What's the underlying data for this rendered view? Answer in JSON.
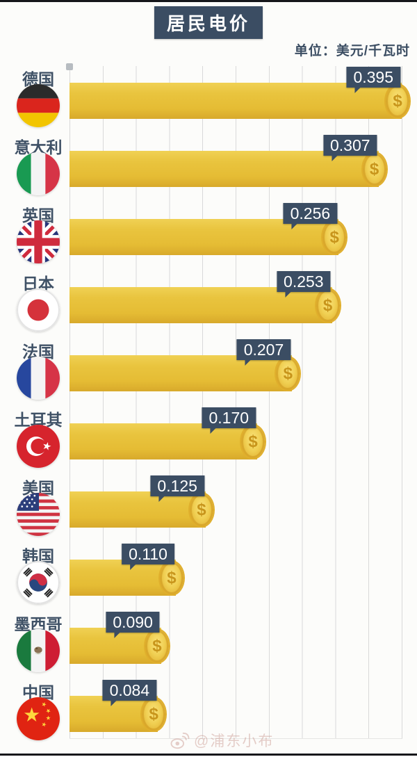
{
  "page": {
    "title": "居民电价",
    "unit": "单位：美元/千瓦时",
    "watermark": "@浦东小布"
  },
  "colors": {
    "accent_slate": "#3b4d63",
    "bar_gold": "#e8c23c",
    "grid_line": "#d9d9d9",
    "coin_gold": "#eec94a",
    "text_dark": "#3f5166"
  },
  "chart_data": {
    "type": "bar",
    "orientation": "horizontal",
    "title": "居民电价",
    "unit": "美元/千瓦时",
    "grid": true,
    "xlim": [
      0,
      0.4
    ],
    "coin_symbol": "$",
    "categories": [
      "德国",
      "意大利",
      "英国",
      "日本",
      "法国",
      "土耳其",
      "美国",
      "韩国",
      "墨西哥",
      "中国"
    ],
    "values": [
      0.395,
      0.307,
      0.256,
      0.253,
      0.207,
      0.17,
      0.125,
      0.11,
      0.09,
      0.084
    ],
    "rows": [
      {
        "label": "德国",
        "flag": "de",
        "value": 0.395,
        "value_label": "0.395",
        "bar_pct": 100
      },
      {
        "label": "意大利",
        "flag": "it",
        "value": 0.307,
        "value_label": "0.307",
        "bar_pct": 93
      },
      {
        "label": "英国",
        "flag": "gb",
        "value": 0.256,
        "value_label": "0.256",
        "bar_pct": 81
      },
      {
        "label": "日本",
        "flag": "jp",
        "value": 0.253,
        "value_label": "0.253",
        "bar_pct": 79
      },
      {
        "label": "法国",
        "flag": "fr",
        "value": 0.207,
        "value_label": "0.207",
        "bar_pct": 67
      },
      {
        "label": "土耳其",
        "flag": "tr",
        "value": 0.17,
        "value_label": "0.170",
        "bar_pct": 56.5
      },
      {
        "label": "美国",
        "flag": "us",
        "value": 0.125,
        "value_label": "0.125",
        "bar_pct": 41
      },
      {
        "label": "韩国",
        "flag": "kr",
        "value": 0.11,
        "value_label": "0.110",
        "bar_pct": 32
      },
      {
        "label": "墨西哥",
        "flag": "mx",
        "value": 0.09,
        "value_label": "0.090",
        "bar_pct": 27.6
      },
      {
        "label": "中国",
        "flag": "cn",
        "value": 0.084,
        "value_label": "0.084",
        "bar_pct": 26.6
      }
    ]
  }
}
